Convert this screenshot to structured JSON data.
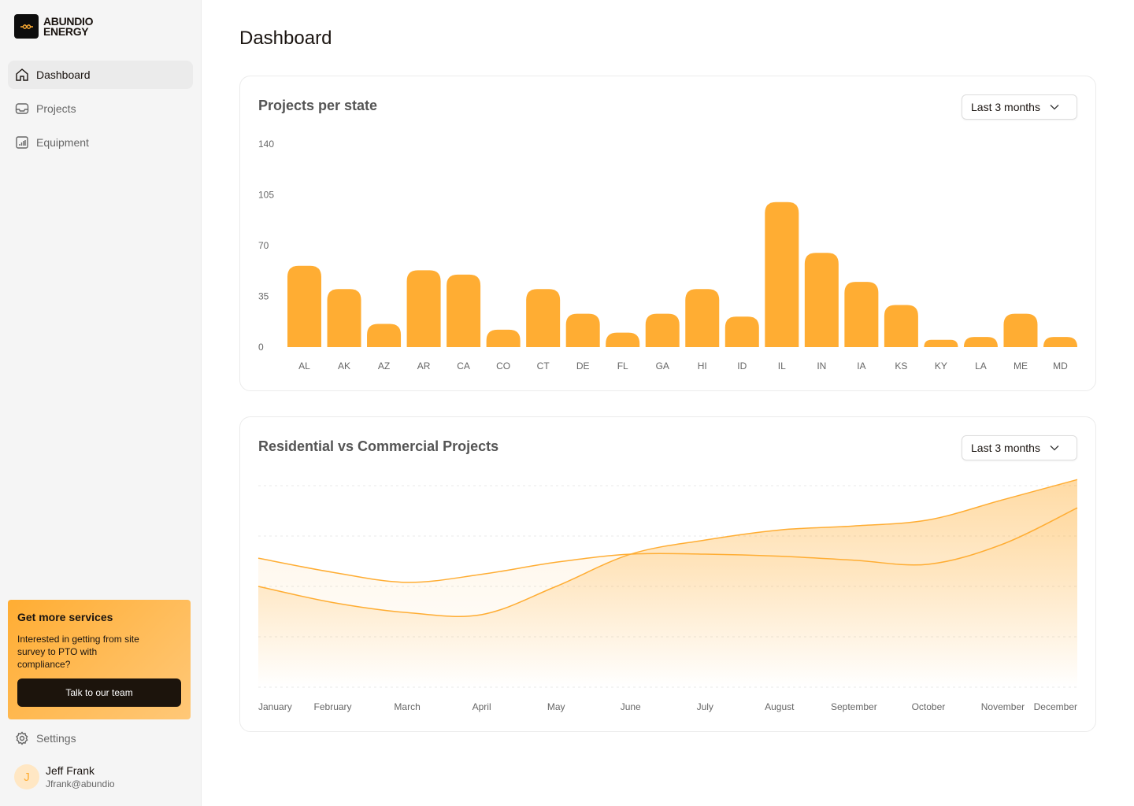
{
  "brand": {
    "line1": "ABUNDIO",
    "line2": "ENERGY"
  },
  "sidebar": {
    "items": [
      {
        "label": "Dashboard",
        "icon": "home-icon",
        "active": true
      },
      {
        "label": "Projects",
        "icon": "inbox-icon"
      },
      {
        "label": "Equipment",
        "icon": "bar-chart-icon"
      }
    ],
    "promo": {
      "title": "Get more services",
      "text": "Interested in getting from site survey to PTO with compliance?",
      "button": "Talk to our team"
    },
    "settings": "Settings",
    "user": {
      "initial": "J",
      "name": "Jeff Frank",
      "email": "Jfrank@abundio"
    }
  },
  "page": {
    "title": "Dashboard"
  },
  "colors": {
    "accent": "#FFAD33",
    "dark": "#1C140C"
  },
  "cards": [
    {
      "title": "Projects per state",
      "filter": "Last 3 months"
    },
    {
      "title": "Residential vs Commercial Projects",
      "filter": "Last 3 months"
    }
  ],
  "chart_data": [
    {
      "type": "bar",
      "categories": [
        "AL",
        "AK",
        "AZ",
        "AR",
        "CA",
        "CO",
        "CT",
        "DE",
        "FL",
        "GA",
        "HI",
        "ID",
        "IL",
        "IN",
        "IA",
        "KS",
        "KY",
        "LA",
        "ME",
        "MD"
      ],
      "values": [
        56,
        40,
        16,
        53,
        50,
        12,
        40,
        23,
        10,
        23,
        40,
        21,
        100,
        65,
        45,
        29,
        5,
        7,
        23,
        7
      ],
      "yticks": [
        0,
        35,
        70,
        105,
        140
      ],
      "ylim": [
        0,
        140
      ],
      "grid": false,
      "color": "#FFAD33"
    },
    {
      "type": "area",
      "categories": [
        "January",
        "February",
        "March",
        "April",
        "May",
        "June",
        "July",
        "August",
        "September",
        "October",
        "November",
        "December"
      ],
      "series": [
        {
          "values": [
            64,
            57,
            52,
            56,
            62,
            66,
            66,
            65,
            63,
            61,
            71,
            89
          ]
        },
        {
          "values": [
            50,
            42,
            37,
            36,
            50,
            66,
            73,
            78,
            80,
            83,
            93,
            103
          ]
        }
      ],
      "ylim": [
        0,
        100
      ],
      "grid": true,
      "color": "#FFAD33"
    }
  ]
}
